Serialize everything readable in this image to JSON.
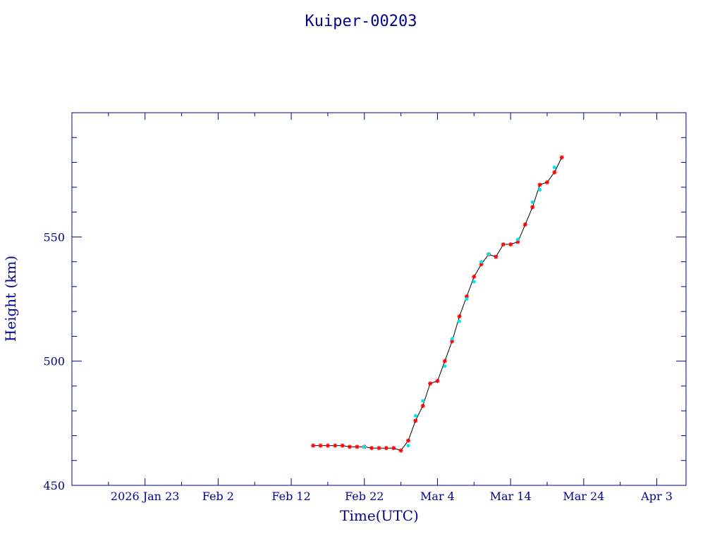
{
  "chart_data": {
    "type": "scatter",
    "title": "Kuiper-00203",
    "xlabel": "Time(UTC)",
    "ylabel": "Height (km)",
    "xlim": [
      "2026-01-13",
      "2026-04-07"
    ],
    "ylim": [
      450,
      600
    ],
    "x_tick_labels": [
      {
        "date": "2026-01-23",
        "label": "2026 Jan 23"
      },
      {
        "date": "2026-02-02",
        "label": "Feb  2"
      },
      {
        "date": "2026-02-12",
        "label": "Feb 12"
      },
      {
        "date": "2026-02-22",
        "label": "Feb 22"
      },
      {
        "date": "2026-03-04",
        "label": "Mar  4"
      },
      {
        "date": "2026-03-14",
        "label": "Mar 14"
      },
      {
        "date": "2026-03-24",
        "label": "Mar 24"
      },
      {
        "date": "2026-04-03",
        "label": "Apr  3"
      }
    ],
    "y_ticks": [
      450,
      500,
      550
    ],
    "colors": {
      "axis": "#00008b",
      "primary": "#ff0000",
      "secondary": "#00e5ee",
      "line": "#000000"
    },
    "series": [
      {
        "marker": "star",
        "color": "#ff0000",
        "points": [
          [
            "2026-02-15",
            466
          ],
          [
            "2026-02-16",
            466
          ],
          [
            "2026-02-17",
            466
          ],
          [
            "2026-02-18",
            466
          ],
          [
            "2026-02-19",
            466
          ],
          [
            "2026-02-20",
            465.5
          ],
          [
            "2026-02-21",
            465.5
          ],
          [
            "2026-02-22",
            465.5
          ],
          [
            "2026-02-23",
            465
          ],
          [
            "2026-02-24",
            465
          ],
          [
            "2026-02-25",
            465
          ],
          [
            "2026-02-26",
            465
          ],
          [
            "2026-02-27",
            464
          ],
          [
            "2026-02-28",
            468
          ],
          [
            "2026-03-01",
            476
          ],
          [
            "2026-03-02",
            482
          ],
          [
            "2026-03-03",
            491
          ],
          [
            "2026-03-04",
            492
          ],
          [
            "2026-03-05",
            500
          ],
          [
            "2026-03-06",
            508
          ],
          [
            "2026-03-07",
            518
          ],
          [
            "2026-03-08",
            526
          ],
          [
            "2026-03-09",
            534
          ],
          [
            "2026-03-10",
            539
          ],
          [
            "2026-03-11",
            543
          ],
          [
            "2026-03-12",
            542
          ],
          [
            "2026-03-13",
            547
          ],
          [
            "2026-03-14",
            547
          ],
          [
            "2026-03-15",
            548
          ],
          [
            "2026-03-16",
            555
          ],
          [
            "2026-03-17",
            562
          ],
          [
            "2026-03-18",
            571
          ],
          [
            "2026-03-19",
            572
          ],
          [
            "2026-03-20",
            576
          ],
          [
            "2026-03-21",
            582
          ]
        ]
      },
      {
        "marker": "dot",
        "color": "#00e5ee",
        "points": [
          [
            "2026-02-22",
            465.5
          ],
          [
            "2026-02-28",
            466
          ],
          [
            "2026-03-01",
            478
          ],
          [
            "2026-03-02",
            484
          ],
          [
            "2026-03-05",
            498
          ],
          [
            "2026-03-06",
            509
          ],
          [
            "2026-03-07",
            516
          ],
          [
            "2026-03-08",
            525
          ],
          [
            "2026-03-09",
            532
          ],
          [
            "2026-03-10",
            540
          ],
          [
            "2026-03-11",
            543
          ],
          [
            "2026-03-15",
            549
          ],
          [
            "2026-03-17",
            564
          ],
          [
            "2026-03-18",
            569
          ],
          [
            "2026-03-20",
            578
          ]
        ]
      }
    ]
  }
}
